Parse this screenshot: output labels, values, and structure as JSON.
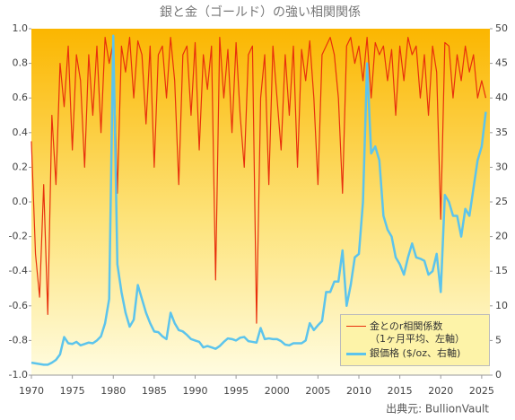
{
  "chart_data": {
    "type": "line",
    "title": "銀と金（ゴールド）の強い相関関係",
    "source": "出典元: BullionVault",
    "legend": "lower right",
    "x": [
      1970,
      1970.5,
      1971,
      1971.5,
      1972,
      1972.5,
      1973,
      1973.5,
      1974,
      1974.5,
      1975,
      1975.5,
      1976,
      1976.5,
      1977,
      1977.5,
      1978,
      1978.5,
      1979,
      1979.5,
      1980,
      1980.5,
      1981,
      1981.5,
      1982,
      1982.5,
      1983,
      1983.5,
      1984,
      1984.5,
      1985,
      1985.5,
      1986,
      1986.5,
      1987,
      1987.5,
      1988,
      1988.5,
      1989,
      1989.5,
      1990,
      1990.5,
      1991,
      1991.5,
      1992,
      1992.5,
      1993,
      1993.5,
      1994,
      1994.5,
      1995,
      1995.5,
      1996,
      1996.5,
      1997,
      1997.5,
      1998,
      1998.5,
      1999,
      1999.5,
      2000,
      2000.5,
      2001,
      2001.5,
      2002,
      2002.5,
      2003,
      2003.5,
      2004,
      2004.5,
      2005,
      2005.5,
      2006,
      2006.5,
      2007,
      2007.5,
      2008,
      2008.5,
      2009,
      2009.5,
      2010,
      2010.5,
      2011,
      2011.5,
      2012,
      2012.5,
      2013,
      2013.5,
      2014,
      2014.5,
      2015,
      2015.5,
      2016,
      2016.5,
      2017,
      2017.5,
      2018,
      2018.5,
      2019,
      2019.5,
      2020,
      2020.5,
      2021,
      2021.5,
      2022,
      2022.5,
      2023,
      2023.5,
      2024,
      2024.5,
      2025,
      2025.5
    ],
    "series": [
      {
        "name": "金とのr相関係数\n（1ヶ月平均、左軸）",
        "color": "#e8300c",
        "axis": "y",
        "values": [
          0.35,
          -0.3,
          -0.55,
          0.1,
          -0.65,
          0.5,
          0.1,
          0.8,
          0.55,
          0.9,
          0.3,
          0.85,
          0.7,
          0.2,
          0.85,
          0.5,
          0.9,
          0.4,
          0.95,
          0.8,
          0.92,
          0.05,
          0.9,
          0.75,
          0.95,
          0.6,
          0.93,
          0.85,
          0.45,
          0.9,
          0.2,
          0.85,
          0.9,
          0.6,
          0.95,
          0.7,
          0.1,
          0.85,
          0.9,
          0.5,
          0.92,
          0.3,
          0.85,
          0.65,
          0.9,
          -0.45,
          0.95,
          0.6,
          0.88,
          0.4,
          0.92,
          0.5,
          0.2,
          0.85,
          0.9,
          -0.7,
          0.6,
          0.85,
          0.1,
          0.9,
          0.6,
          0.3,
          0.85,
          0.5,
          0.9,
          0.2,
          0.88,
          0.7,
          0.93,
          0.6,
          0.1,
          0.85,
          0.9,
          0.95,
          0.85,
          0.6,
          0.05,
          0.9,
          0.95,
          0.8,
          0.9,
          0.7,
          0.95,
          0.6,
          0.92,
          0.85,
          0.9,
          0.7,
          0.88,
          0.5,
          0.9,
          0.7,
          0.95,
          0.85,
          0.9,
          0.6,
          0.85,
          0.5,
          0.9,
          0.75,
          -0.1,
          0.92,
          0.9,
          0.6,
          0.85,
          0.7,
          0.9,
          0.75,
          0.85,
          0.6,
          0.7,
          0.6
        ]
      },
      {
        "name": "銀価格 ($/oz、右軸)",
        "color": "#5cc4ec",
        "axis": "y2",
        "values": [
          1.8,
          1.7,
          1.6,
          1.5,
          1.5,
          1.8,
          2.2,
          3.0,
          5.5,
          4.6,
          4.5,
          4.8,
          4.3,
          4.5,
          4.7,
          4.6,
          5.0,
          5.6,
          7.5,
          11,
          49,
          16,
          12,
          9,
          7,
          8,
          13,
          11,
          9,
          7.5,
          6.3,
          6.2,
          5.6,
          5.2,
          9,
          7.5,
          6.5,
          6.3,
          5.8,
          5.2,
          5.0,
          4.8,
          4.0,
          4.2,
          4.0,
          3.8,
          4.2,
          4.8,
          5.3,
          5.2,
          5.0,
          5.4,
          5.5,
          4.9,
          4.8,
          4.7,
          6.8,
          5.2,
          5.3,
          5.2,
          5.2,
          4.9,
          4.4,
          4.3,
          4.6,
          4.6,
          4.6,
          5.0,
          7.5,
          6.5,
          7.2,
          7.8,
          12,
          12,
          13.5,
          13.5,
          18,
          10,
          13,
          17,
          17.5,
          25,
          45,
          32,
          33,
          31,
          23,
          21,
          20,
          17,
          16,
          14.5,
          17,
          19,
          17,
          16.8,
          16.5,
          14.5,
          15,
          17.5,
          12,
          26,
          25,
          23,
          23,
          20,
          24,
          23,
          27,
          31,
          33,
          38
        ]
      }
    ],
    "xlim": [
      1970,
      2026
    ],
    "xticks": [
      1970,
      1975,
      1980,
      1985,
      1990,
      1995,
      2000,
      2005,
      2010,
      2015,
      2020,
      2025
    ],
    "ylim": [
      -1,
      1
    ],
    "yticks": [
      {
        "value": -1,
        "label": "-1.0"
      },
      -0.8,
      -0.6,
      -0.4,
      -0.2,
      {
        "value": 0,
        "label": "0.0"
      },
      0.2,
      0.4,
      0.6,
      0.8,
      {
        "value": 1,
        "label": "1.0"
      }
    ],
    "y2lim": [
      0,
      50
    ],
    "y2ticks": [
      0,
      5,
      10,
      15,
      20,
      25,
      30,
      35,
      40,
      45,
      50
    ]
  }
}
